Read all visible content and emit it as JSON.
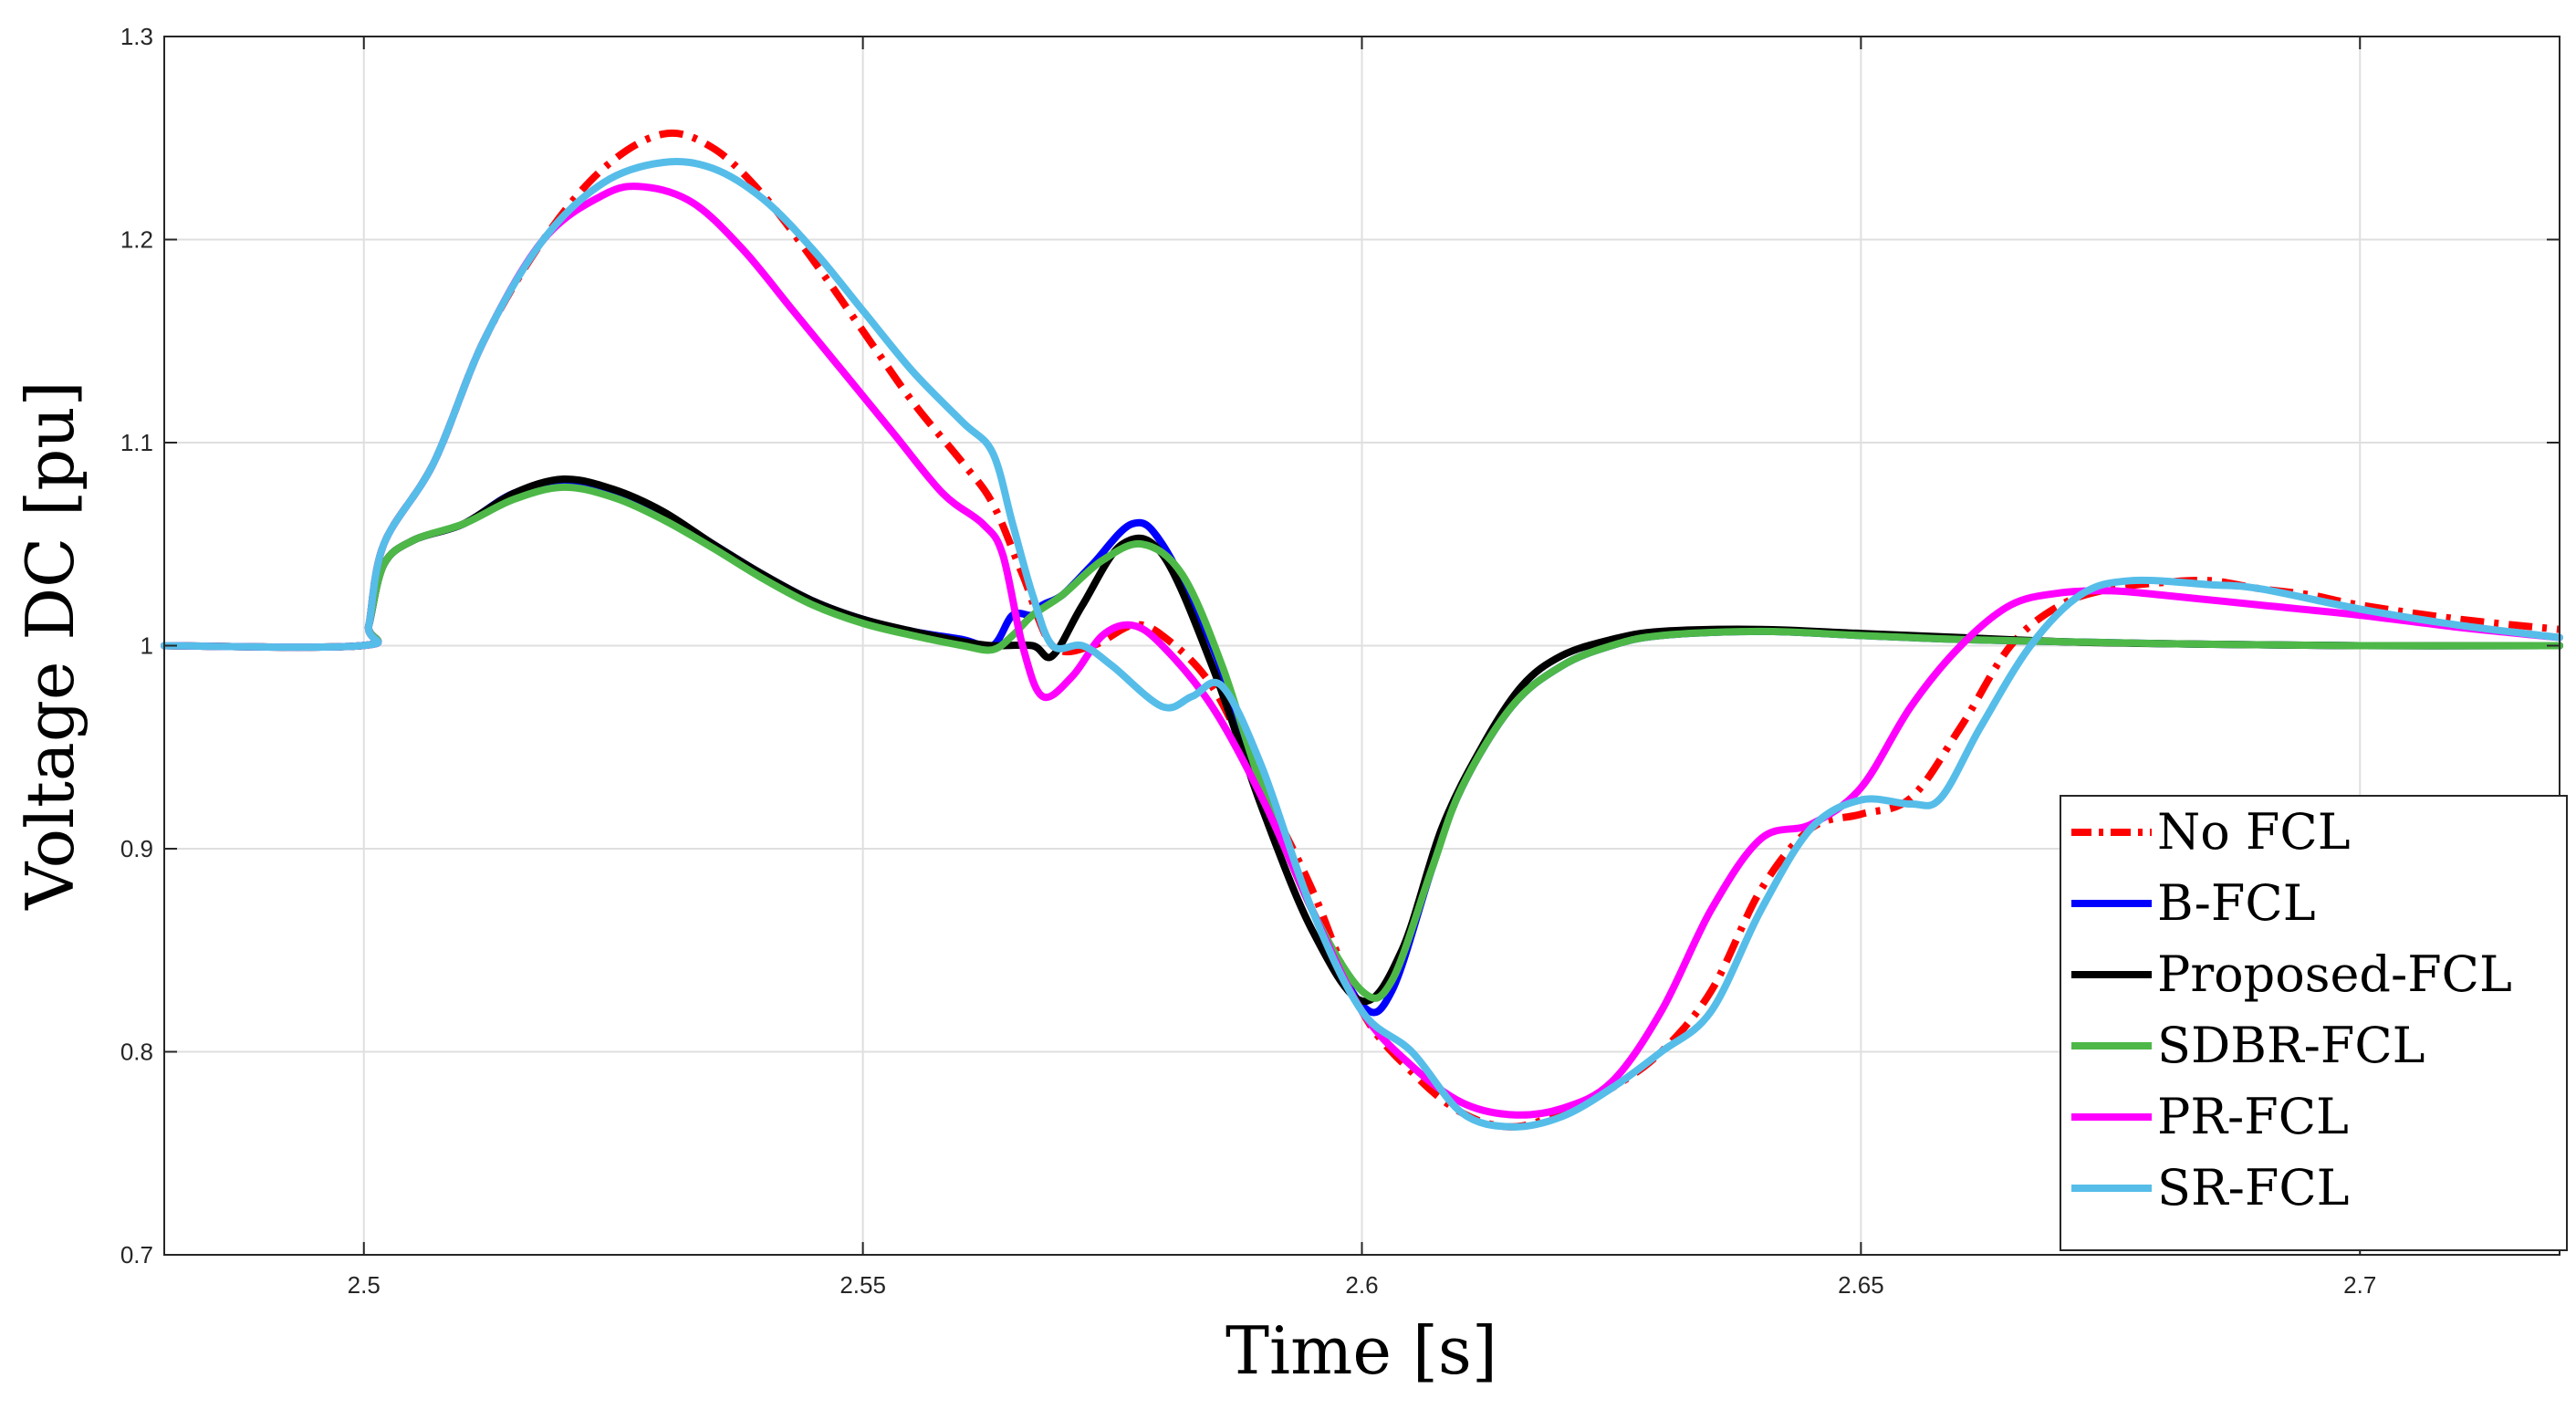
{
  "chart_data": {
    "type": "line",
    "title": "",
    "xlabel": "Time [s]",
    "ylabel": "Voltage DC [pu]",
    "xlim": [
      2.48,
      2.72
    ],
    "ylim": [
      0.7,
      1.3
    ],
    "xticks": [
      2.5,
      2.55,
      2.6,
      2.65,
      2.7
    ],
    "xtick_labels": [
      "2.5",
      "2.55",
      "2.6",
      "2.65",
      "2.7"
    ],
    "yticks": [
      0.7,
      0.8,
      0.9,
      1.0,
      1.1,
      1.2,
      1.3
    ],
    "ytick_labels": [
      "0.7",
      "0.8",
      "0.9",
      "1",
      "1.1",
      "1.2",
      "1.3"
    ],
    "grid": true,
    "legend_position": "bottom-right",
    "series": [
      {
        "name": "No FCL",
        "color": "#ff0000",
        "dash": "dashdot",
        "points": [
          [
            2.48,
            1.0
          ],
          [
            2.4998,
            1.0
          ],
          [
            2.5005,
            1.01
          ],
          [
            2.502,
            1.05
          ],
          [
            2.507,
            1.09
          ],
          [
            2.512,
            1.15
          ],
          [
            2.518,
            1.2
          ],
          [
            2.524,
            1.235
          ],
          [
            2.53,
            1.252
          ],
          [
            2.535,
            1.245
          ],
          [
            2.54,
            1.222
          ],
          [
            2.545,
            1.19
          ],
          [
            2.55,
            1.155
          ],
          [
            2.555,
            1.12
          ],
          [
            2.56,
            1.09
          ],
          [
            2.563,
            1.07
          ],
          [
            2.566,
            1.035
          ],
          [
            2.569,
            1.0
          ],
          [
            2.573,
            1.0
          ],
          [
            2.577,
            1.01
          ],
          [
            2.58,
            1.005
          ],
          [
            2.585,
            0.98
          ],
          [
            2.59,
            0.93
          ],
          [
            2.595,
            0.88
          ],
          [
            2.6,
            0.82
          ],
          [
            2.605,
            0.79
          ],
          [
            2.61,
            0.77
          ],
          [
            2.615,
            0.763
          ],
          [
            2.62,
            0.77
          ],
          [
            2.625,
            0.782
          ],
          [
            2.63,
            0.8
          ],
          [
            2.635,
            0.83
          ],
          [
            2.64,
            0.88
          ],
          [
            2.645,
            0.91
          ],
          [
            2.65,
            0.917
          ],
          [
            2.655,
            0.925
          ],
          [
            2.66,
            0.96
          ],
          [
            2.665,
            1.0
          ],
          [
            2.67,
            1.02
          ],
          [
            2.675,
            1.028
          ],
          [
            2.68,
            1.031
          ],
          [
            2.685,
            1.032
          ],
          [
            2.69,
            1.028
          ],
          [
            2.695,
            1.025
          ],
          [
            2.7,
            1.02
          ],
          [
            2.71,
            1.013
          ],
          [
            2.72,
            1.008
          ]
        ]
      },
      {
        "name": "B-FCL",
        "color": "#0000ff",
        "dash": "solid",
        "points": [
          [
            2.48,
            1.0
          ],
          [
            2.4998,
            1.0
          ],
          [
            2.5005,
            1.01
          ],
          [
            2.502,
            1.04
          ],
          [
            2.505,
            1.052
          ],
          [
            2.51,
            1.06
          ],
          [
            2.515,
            1.075
          ],
          [
            2.52,
            1.08
          ],
          [
            2.525,
            1.075
          ],
          [
            2.53,
            1.065
          ],
          [
            2.535,
            1.05
          ],
          [
            2.54,
            1.035
          ],
          [
            2.545,
            1.022
          ],
          [
            2.55,
            1.013
          ],
          [
            2.555,
            1.007
          ],
          [
            2.56,
            1.003
          ],
          [
            2.563,
            1.0
          ],
          [
            2.565,
            1.015
          ],
          [
            2.567,
            1.015
          ],
          [
            2.568,
            1.02
          ],
          [
            2.57,
            1.025
          ],
          [
            2.573,
            1.04
          ],
          [
            2.577,
            1.06
          ],
          [
            2.58,
            1.05
          ],
          [
            2.585,
            1.0
          ],
          [
            2.59,
            0.93
          ],
          [
            2.595,
            0.87
          ],
          [
            2.6,
            0.823
          ],
          [
            2.603,
            0.83
          ],
          [
            2.607,
            0.89
          ],
          [
            2.61,
            0.93
          ],
          [
            2.615,
            0.97
          ],
          [
            2.62,
            0.99
          ],
          [
            2.625,
            1.0
          ],
          [
            2.63,
            1.005
          ],
          [
            2.64,
            1.007
          ],
          [
            2.65,
            1.005
          ],
          [
            2.66,
            1.003
          ],
          [
            2.67,
            1.002
          ],
          [
            2.68,
            1.001
          ],
          [
            2.7,
            1.0
          ],
          [
            2.72,
            1.0
          ]
        ]
      },
      {
        "name": "Proposed-FCL",
        "color": "#000000",
        "dash": "solid",
        "points": [
          [
            2.48,
            1.0
          ],
          [
            2.4998,
            1.0
          ],
          [
            2.5005,
            1.01
          ],
          [
            2.502,
            1.04
          ],
          [
            2.505,
            1.052
          ],
          [
            2.51,
            1.06
          ],
          [
            2.515,
            1.075
          ],
          [
            2.52,
            1.082
          ],
          [
            2.525,
            1.077
          ],
          [
            2.53,
            1.066
          ],
          [
            2.535,
            1.05
          ],
          [
            2.54,
            1.035
          ],
          [
            2.545,
            1.022
          ],
          [
            2.55,
            1.013
          ],
          [
            2.555,
            1.007
          ],
          [
            2.56,
            1.002
          ],
          [
            2.563,
            1.0
          ],
          [
            2.567,
            1.0
          ],
          [
            2.569,
            0.995
          ],
          [
            2.572,
            1.02
          ],
          [
            2.576,
            1.05
          ],
          [
            2.58,
            1.045
          ],
          [
            2.585,
            0.99
          ],
          [
            2.59,
            0.92
          ],
          [
            2.595,
            0.86
          ],
          [
            2.6,
            0.825
          ],
          [
            2.604,
            0.85
          ],
          [
            2.608,
            0.91
          ],
          [
            2.612,
            0.95
          ],
          [
            2.616,
            0.98
          ],
          [
            2.62,
            0.995
          ],
          [
            2.625,
            1.003
          ],
          [
            2.63,
            1.007
          ],
          [
            2.64,
            1.008
          ],
          [
            2.65,
            1.006
          ],
          [
            2.66,
            1.004
          ],
          [
            2.67,
            1.002
          ],
          [
            2.68,
            1.001
          ],
          [
            2.7,
            1.0
          ],
          [
            2.72,
            1.0
          ]
        ]
      },
      {
        "name": "SDBR-FCL",
        "color": "#4db848",
        "dash": "solid",
        "points": [
          [
            2.48,
            1.0
          ],
          [
            2.4998,
            1.0
          ],
          [
            2.5005,
            1.01
          ],
          [
            2.502,
            1.04
          ],
          [
            2.505,
            1.052
          ],
          [
            2.51,
            1.06
          ],
          [
            2.515,
            1.072
          ],
          [
            2.52,
            1.078
          ],
          [
            2.525,
            1.073
          ],
          [
            2.53,
            1.062
          ],
          [
            2.535,
            1.048
          ],
          [
            2.54,
            1.033
          ],
          [
            2.545,
            1.02
          ],
          [
            2.55,
            1.011
          ],
          [
            2.555,
            1.005
          ],
          [
            2.56,
            1.0
          ],
          [
            2.563,
            0.998
          ],
          [
            2.565,
            1.005
          ],
          [
            2.567,
            1.015
          ],
          [
            2.57,
            1.025
          ],
          [
            2.574,
            1.042
          ],
          [
            2.578,
            1.05
          ],
          [
            2.582,
            1.035
          ],
          [
            2.586,
            0.99
          ],
          [
            2.59,
            0.93
          ],
          [
            2.595,
            0.87
          ],
          [
            2.6,
            0.83
          ],
          [
            2.603,
            0.835
          ],
          [
            2.607,
            0.89
          ],
          [
            2.61,
            0.93
          ],
          [
            2.615,
            0.97
          ],
          [
            2.62,
            0.99
          ],
          [
            2.625,
            1.0
          ],
          [
            2.63,
            1.005
          ],
          [
            2.64,
            1.007
          ],
          [
            2.65,
            1.005
          ],
          [
            2.66,
            1.003
          ],
          [
            2.67,
            1.002
          ],
          [
            2.68,
            1.001
          ],
          [
            2.7,
            1.0
          ],
          [
            2.72,
            1.0
          ]
        ]
      },
      {
        "name": "PR-FCL",
        "color": "#ff00ff",
        "dash": "solid",
        "points": [
          [
            2.48,
            1.0
          ],
          [
            2.4998,
            1.0
          ],
          [
            2.5005,
            1.01
          ],
          [
            2.502,
            1.05
          ],
          [
            2.507,
            1.09
          ],
          [
            2.512,
            1.15
          ],
          [
            2.518,
            1.2
          ],
          [
            2.524,
            1.222
          ],
          [
            2.528,
            1.226
          ],
          [
            2.533,
            1.218
          ],
          [
            2.538,
            1.195
          ],
          [
            2.543,
            1.165
          ],
          [
            2.548,
            1.135
          ],
          [
            2.553,
            1.105
          ],
          [
            2.558,
            1.075
          ],
          [
            2.562,
            1.06
          ],
          [
            2.564,
            1.045
          ],
          [
            2.566,
            1.0
          ],
          [
            2.568,
            0.975
          ],
          [
            2.571,
            0.985
          ],
          [
            2.574,
            1.005
          ],
          [
            2.577,
            1.01
          ],
          [
            2.58,
            1.0
          ],
          [
            2.585,
            0.97
          ],
          [
            2.59,
            0.925
          ],
          [
            2.595,
            0.87
          ],
          [
            2.6,
            0.82
          ],
          [
            2.605,
            0.793
          ],
          [
            2.61,
            0.775
          ],
          [
            2.615,
            0.769
          ],
          [
            2.62,
            0.772
          ],
          [
            2.625,
            0.785
          ],
          [
            2.63,
            0.82
          ],
          [
            2.635,
            0.87
          ],
          [
            2.64,
            0.905
          ],
          [
            2.645,
            0.912
          ],
          [
            2.65,
            0.93
          ],
          [
            2.655,
            0.97
          ],
          [
            2.66,
            1.0
          ],
          [
            2.665,
            1.02
          ],
          [
            2.67,
            1.026
          ],
          [
            2.675,
            1.027
          ],
          [
            2.68,
            1.025
          ],
          [
            2.69,
            1.02
          ],
          [
            2.7,
            1.015
          ],
          [
            2.71,
            1.009
          ],
          [
            2.72,
            1.004
          ]
        ]
      },
      {
        "name": "SR-FCL",
        "color": "#56bde9",
        "dash": "solid",
        "points": [
          [
            2.48,
            1.0
          ],
          [
            2.4998,
            1.0
          ],
          [
            2.5005,
            1.01
          ],
          [
            2.502,
            1.05
          ],
          [
            2.507,
            1.09
          ],
          [
            2.512,
            1.15
          ],
          [
            2.518,
            1.2
          ],
          [
            2.524,
            1.228
          ],
          [
            2.53,
            1.238
          ],
          [
            2.535,
            1.235
          ],
          [
            2.54,
            1.22
          ],
          [
            2.545,
            1.195
          ],
          [
            2.55,
            1.165
          ],
          [
            2.555,
            1.135
          ],
          [
            2.56,
            1.11
          ],
          [
            2.563,
            1.095
          ],
          [
            2.565,
            1.06
          ],
          [
            2.567,
            1.025
          ],
          [
            2.569,
            1.0
          ],
          [
            2.572,
            1.0
          ],
          [
            2.575,
            0.99
          ],
          [
            2.58,
            0.97
          ],
          [
            2.583,
            0.975
          ],
          [
            2.586,
            0.98
          ],
          [
            2.59,
            0.94
          ],
          [
            2.595,
            0.87
          ],
          [
            2.6,
            0.82
          ],
          [
            2.605,
            0.8
          ],
          [
            2.61,
            0.77
          ],
          [
            2.615,
            0.763
          ],
          [
            2.62,
            0.768
          ],
          [
            2.625,
            0.782
          ],
          [
            2.63,
            0.8
          ],
          [
            2.635,
            0.82
          ],
          [
            2.64,
            0.87
          ],
          [
            2.645,
            0.91
          ],
          [
            2.65,
            0.924
          ],
          [
            2.655,
            0.922
          ],
          [
            2.658,
            0.925
          ],
          [
            2.662,
            0.96
          ],
          [
            2.667,
            1.0
          ],
          [
            2.672,
            1.025
          ],
          [
            2.677,
            1.032
          ],
          [
            2.685,
            1.03
          ],
          [
            2.69,
            1.028
          ],
          [
            2.7,
            1.018
          ],
          [
            2.71,
            1.01
          ],
          [
            2.72,
            1.004
          ]
        ]
      }
    ]
  }
}
